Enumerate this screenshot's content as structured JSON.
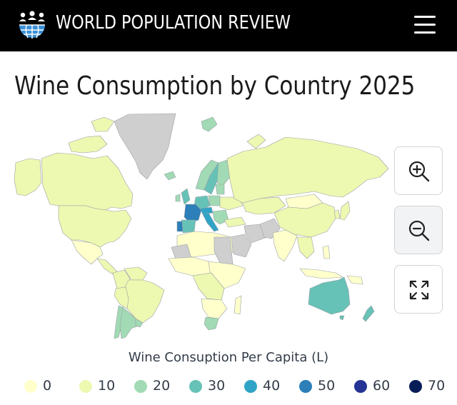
{
  "header": {
    "brand": "WORLD POPULATION REVIEW"
  },
  "page": {
    "title": "Wine Consumption by Country 2025"
  },
  "map": {
    "legend_title": "Wine Consuption Per Capita (L)",
    "legend": [
      {
        "label": "0",
        "color": "#ffffcc"
      },
      {
        "label": "10",
        "color": "#edf8b1"
      },
      {
        "label": "20",
        "color": "#a1dab4"
      },
      {
        "label": "30",
        "color": "#66c2b6"
      },
      {
        "label": "40",
        "color": "#2fa4c6"
      },
      {
        "label": "50",
        "color": "#2c7fb8"
      },
      {
        "label": "60",
        "color": "#253494"
      },
      {
        "label": "70",
        "color": "#081d58"
      }
    ],
    "no_data_color": "#cfcfcf",
    "controls": [
      "zoom-in-icon",
      "zoom-out-icon",
      "fullscreen-icon"
    ]
  }
}
